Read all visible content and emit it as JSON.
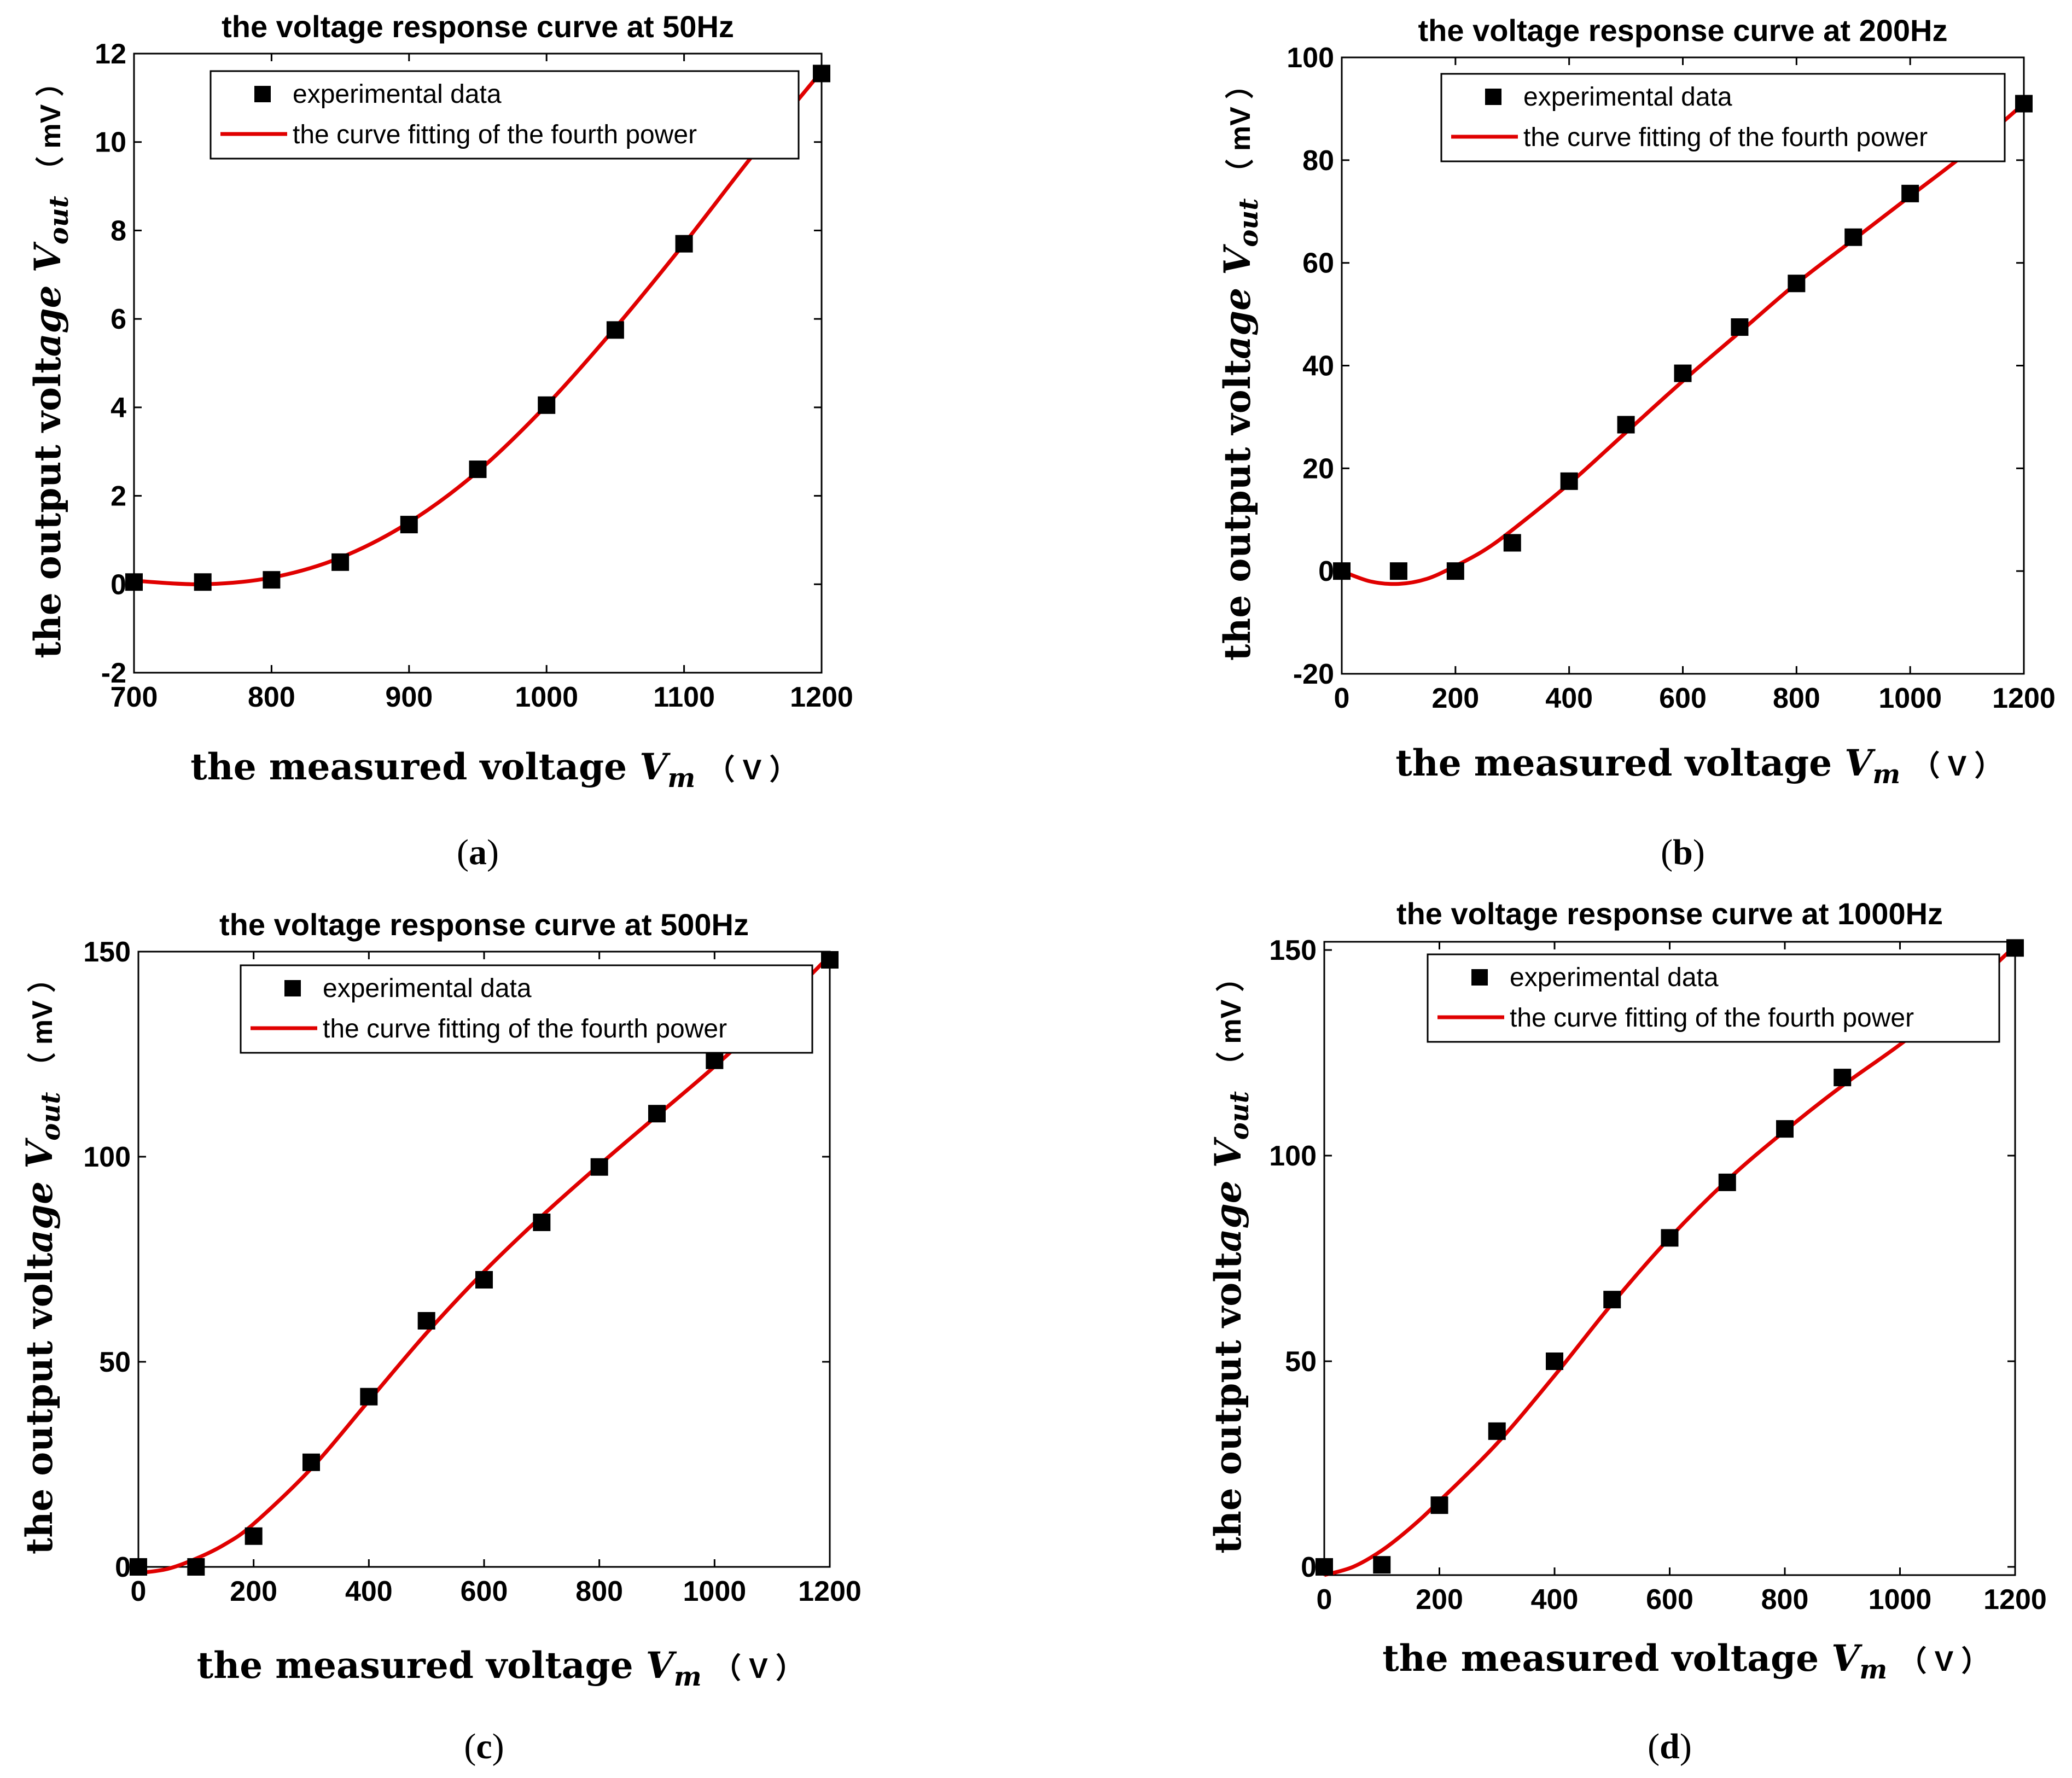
{
  "chart_data": [
    {
      "type": "scatter",
      "panel": "(a)",
      "title": "the voltage response curve at  50Hz",
      "xlabel": {
        "main": "the measured voltage ",
        "var": "V",
        "sub": "m",
        "unit": "（ V ）"
      },
      "ylabel": {
        "main": "the output volt",
        "var": "age V",
        "sub": "out",
        "unit": "（ mV ）"
      },
      "xlim": [
        700,
        1200
      ],
      "ylim": [
        -2,
        12
      ],
      "xticks": [
        700,
        800,
        900,
        1000,
        1100,
        1200
      ],
      "yticks": [
        -2,
        0,
        2,
        4,
        6,
        8,
        10,
        12
      ],
      "legend": [
        "experimental data",
        "the curve fitting of the fourth power"
      ],
      "legend_position": "top",
      "series": [
        {
          "name": "experimental data",
          "x": [
            700,
            750,
            800,
            850,
            900,
            950,
            1000,
            1050,
            1100,
            1200
          ],
          "y": [
            0.05,
            0.05,
            0.1,
            0.5,
            1.35,
            2.6,
            4.05,
            5.75,
            7.7,
            11.55
          ]
        },
        {
          "name": "the curve fitting of the fourth power",
          "x": [
            700,
            750,
            800,
            850,
            900,
            950,
            1000,
            1050,
            1100,
            1150,
            1200
          ],
          "y": [
            0.08,
            0.0,
            0.15,
            0.6,
            1.4,
            2.55,
            4.05,
            5.8,
            7.7,
            9.7,
            11.6
          ]
        }
      ]
    },
    {
      "type": "scatter",
      "panel": "(b)",
      "title": "the voltage response curve at 200Hz",
      "xlabel": {
        "main": "the measured voltage ",
        "var": "V",
        "sub": "m",
        "unit": "（ V ）"
      },
      "ylabel": {
        "main": "the output volt",
        "var": "age V",
        "sub": "out",
        "unit": "（ mV ）"
      },
      "xlim": [
        0,
        1200
      ],
      "ylim": [
        -20,
        100
      ],
      "xticks": [
        0,
        200,
        400,
        600,
        800,
        1000,
        1200
      ],
      "yticks": [
        -20,
        0,
        20,
        40,
        60,
        80,
        100
      ],
      "legend": [
        "experimental data",
        "the curve fitting of the fourth power"
      ],
      "legend_position": "top-right",
      "series": [
        {
          "name": "experimental data",
          "x": [
            0,
            100,
            200,
            300,
            400,
            500,
            600,
            700,
            800,
            900,
            1000,
            1200
          ],
          "y": [
            0,
            0,
            0,
            5.5,
            17.5,
            28.5,
            38.5,
            47.5,
            56,
            65,
            73.5,
            91
          ]
        },
        {
          "name": "the curve fitting of the fourth power",
          "x": [
            0,
            50,
            100,
            150,
            200,
            250,
            300,
            400,
            500,
            600,
            700,
            800,
            900,
            1000,
            1100,
            1200
          ],
          "y": [
            0,
            -2,
            -2.5,
            -1.5,
            1,
            4,
            8,
            17,
            27,
            37,
            46.5,
            56,
            64.5,
            73,
            81.5,
            91
          ]
        }
      ]
    },
    {
      "type": "scatter",
      "panel": "(c)",
      "title": "the voltage response curve at  500Hz",
      "xlabel": {
        "main": "the measured voltage ",
        "var": "V",
        "sub": "m",
        "unit": "（ V ）"
      },
      "ylabel": {
        "main": "the output volt",
        "var": "age V",
        "sub": "out",
        "unit": "（ mV ）"
      },
      "xlim": [
        0,
        1200
      ],
      "ylim": [
        0,
        150
      ],
      "xticks": [
        0,
        200,
        400,
        600,
        800,
        1000,
        1200
      ],
      "yticks": [
        0,
        50,
        100,
        150
      ],
      "legend": [
        "experimental data",
        "the curve fitting of the fourth power"
      ],
      "legend_position": "top-right",
      "series": [
        {
          "name": "experimental data",
          "x": [
            0,
            100,
            200,
            300,
            400,
            500,
            600,
            700,
            800,
            900,
            1000,
            1200
          ],
          "y": [
            0,
            0,
            7.5,
            25.5,
            41.5,
            60,
            70,
            84,
            97.5,
            110.5,
            123.5,
            148
          ]
        },
        {
          "name": "the curve fitting of the fourth power",
          "x": [
            0,
            50,
            100,
            150,
            200,
            300,
            400,
            500,
            600,
            700,
            800,
            900,
            1000,
            1100,
            1200
          ],
          "y": [
            -1.5,
            -0.5,
            2,
            5.5,
            10.5,
            24,
            40.5,
            57,
            72,
            85.5,
            98,
            110,
            122,
            135,
            149
          ]
        }
      ]
    },
    {
      "type": "scatter",
      "panel": "(d)",
      "title": "the voltage response curve at  1000Hz",
      "xlabel": {
        "main": "the measured voltage ",
        "var": "V",
        "sub": "m",
        "unit": "（ V ）"
      },
      "ylabel": {
        "main": "the output volt",
        "var": "age V",
        "sub": "out",
        "unit": "（ mV ）"
      },
      "xlim": [
        0,
        1200
      ],
      "ylim": [
        -2,
        152
      ],
      "xticks": [
        0,
        200,
        400,
        600,
        800,
        1000,
        1200
      ],
      "yticks": [
        0,
        50,
        100,
        150
      ],
      "legend": [
        "experimental data",
        "the curve fitting of the fourth power"
      ],
      "legend_position": "top-right",
      "series": [
        {
          "name": "experimental data",
          "x": [
            0,
            100,
            200,
            300,
            400,
            500,
            600,
            700,
            800,
            900,
            1200
          ],
          "y": [
            0,
            0.5,
            15,
            33,
            50,
            65,
            80,
            93.5,
            106.5,
            119,
            150.5
          ]
        },
        {
          "name": "the curve fitting of the fourth power",
          "x": [
            0,
            50,
            100,
            150,
            200,
            300,
            400,
            500,
            600,
            700,
            800,
            900,
            1000,
            1100,
            1200
          ],
          "y": [
            -2,
            0,
            4,
            9.5,
            16,
            30,
            46.5,
            64,
            80,
            94,
            106,
            117,
            127,
            138,
            151
          ]
        }
      ]
    }
  ],
  "colors": {
    "fit": "#e00000",
    "marker": "#000000"
  }
}
